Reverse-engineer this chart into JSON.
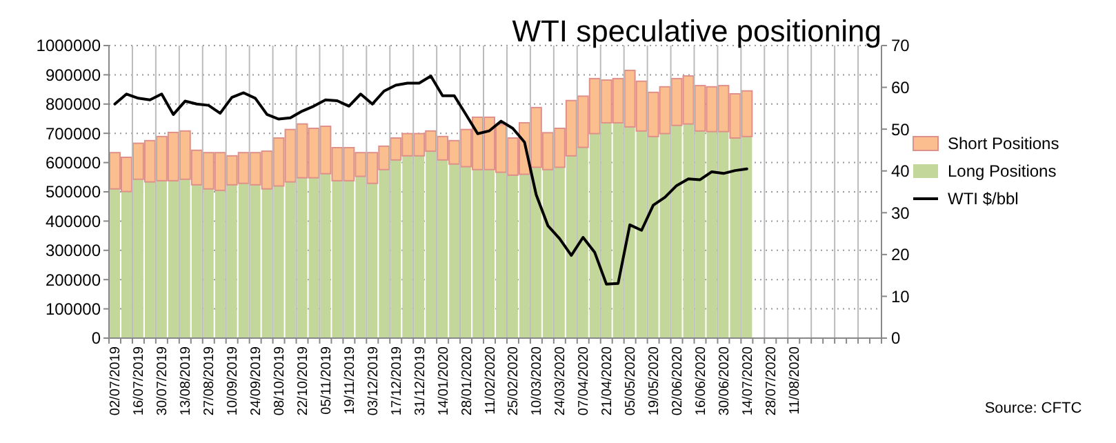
{
  "chart_data": {
    "type": "bar",
    "title": "WTI speculative positioning",
    "stacked": true,
    "grid": true,
    "legend": "right",
    "categories": [
      "02/07/2019",
      null,
      "16/07/2019",
      null,
      "30/07/2019",
      null,
      "13/08/2019",
      null,
      "27/08/2019",
      null,
      "10/09/2019",
      null,
      "24/09/2019",
      null,
      "08/10/2019",
      null,
      "22/10/2019",
      null,
      "05/11/2019",
      null,
      "19/11/2019",
      null,
      "03/12/2019",
      null,
      "17/12/2019",
      null,
      "31/12/2019",
      null,
      "14/01/2020",
      null,
      "28/01/2020",
      null,
      "11/02/2020",
      null,
      "25/02/2020",
      null,
      "10/03/2020",
      null,
      "24/03/2020",
      null,
      "07/04/2020",
      null,
      "21/04/2020",
      null,
      "05/05/2020",
      null,
      "19/05/2020",
      null,
      "02/06/2020",
      null,
      "16/06/2020",
      null,
      "30/06/2020",
      null,
      "14/07/2020",
      null,
      "28/07/2020",
      null,
      "11/08/2020",
      null,
      null,
      null,
      null,
      null,
      null,
      null
    ],
    "series": [
      {
        "name": "Long Positions",
        "color": "#c4d79b",
        "values": [
          510000,
          501000,
          543000,
          534000,
          538000,
          538000,
          543000,
          524000,
          510000,
          505000,
          524000,
          529000,
          524000,
          510000,
          520000,
          534000,
          548000,
          548000,
          562000,
          538000,
          538000,
          553000,
          529000,
          576000,
          609000,
          623000,
          623000,
          639000,
          609000,
          595000,
          586000,
          576000,
          576000,
          567000,
          557000,
          560000,
          584000,
          576000,
          584000,
          623000,
          652000,
          699000,
          736000,
          736000,
          722000,
          708000,
          689000,
          699000,
          727000,
          732000,
          708000,
          706000,
          706000,
          684000,
          689000,
          null,
          null,
          null,
          null,
          null,
          null,
          null,
          null,
          null,
          null,
          null
        ]
      },
      {
        "name": "Short Positions",
        "color": "#fbbf8f",
        "values": [
          124000,
          117000,
          123000,
          141000,
          151000,
          165000,
          165000,
          118000,
          124000,
          129000,
          99000,
          105000,
          110000,
          129000,
          164000,
          179000,
          184000,
          169000,
          162000,
          113000,
          113000,
          81000,
          105000,
          80000,
          75000,
          76000,
          76000,
          69000,
          80000,
          80000,
          127000,
          179000,
          179000,
          163000,
          127000,
          176000,
          204000,
          126000,
          133000,
          189000,
          175000,
          188000,
          146000,
          151000,
          193000,
          170000,
          151000,
          160000,
          160000,
          164000,
          155000,
          153000,
          157000,
          151000,
          156000,
          null,
          null,
          null,
          null,
          null,
          null,
          null,
          null,
          null,
          null,
          null
        ]
      },
      {
        "name": "WTI $/bbl",
        "type": "line",
        "axis": "y2",
        "color": "#000000",
        "values": [
          56.0,
          58.4,
          57.4,
          57.0,
          58.4,
          53.5,
          56.7,
          56.0,
          55.7,
          53.8,
          57.6,
          58.7,
          57.4,
          53.5,
          52.4,
          52.7,
          54.3,
          55.5,
          57.0,
          56.8,
          55.5,
          58.4,
          56.0,
          59.1,
          60.5,
          61.0,
          61.0,
          62.7,
          58.0,
          58.0,
          53.5,
          48.9,
          49.6,
          51.9,
          50.2,
          46.9,
          34.3,
          26.9,
          23.8,
          19.8,
          24.1,
          20.5,
          12.9,
          13.1,
          27.1,
          25.8,
          31.8,
          33.7,
          36.5,
          38.1,
          37.9,
          39.8,
          39.4,
          40.1,
          40.5,
          null,
          null,
          null,
          null,
          null,
          null,
          null,
          null,
          null,
          null,
          null
        ]
      }
    ],
    "ylim": [
      0,
      1000000
    ],
    "yticks": [
      0,
      100000,
      200000,
      300000,
      400000,
      500000,
      600000,
      700000,
      800000,
      900000,
      1000000
    ],
    "y2lim": [
      0,
      70
    ],
    "y2ticks": [
      0,
      10,
      20,
      30,
      40,
      50,
      60,
      70
    ],
    "annotations": [
      "Source: CFTC"
    ]
  }
}
